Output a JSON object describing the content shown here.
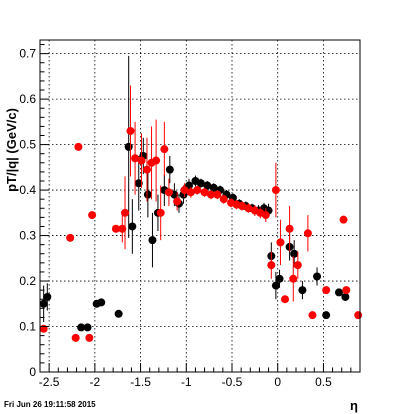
{
  "footer_text": "Fri Jun 26 19:11:58 2015",
  "chart_data": {
    "type": "scatter",
    "title": "",
    "xlabel": "η",
    "ylabel": "pT/|q| (GeV/c)",
    "xlim": [
      -2.6,
      0.9
    ],
    "ylim": [
      0,
      0.73
    ],
    "xticks": [
      -2.5,
      -2,
      -1.5,
      -1,
      -0.5,
      0,
      0.5
    ],
    "xtick_labels": [
      "-2.5",
      "-2",
      "-1.5",
      "-1",
      "-0.5",
      "0",
      "0.5"
    ],
    "yticks": [
      0,
      0.1,
      0.2,
      0.3,
      0.4,
      0.5,
      0.6,
      0.7
    ],
    "ytick_labels": [
      "0",
      "0.1",
      "0.2",
      "0.3",
      "0.4",
      "0.5",
      "0.6",
      "0.7"
    ],
    "grid": true,
    "series": [
      {
        "color": "#000000",
        "points": [
          {
            "x": -2.56,
            "y": 0.15,
            "err": 0.04
          },
          {
            "x": -2.52,
            "y": 0.165,
            "err": 0.03
          },
          {
            "x": -2.15,
            "y": 0.098,
            "err": 0.0
          },
          {
            "x": -2.08,
            "y": 0.098,
            "err": 0.0
          },
          {
            "x": -1.98,
            "y": 0.15,
            "err": 0.0
          },
          {
            "x": -1.93,
            "y": 0.153,
            "err": 0.0
          },
          {
            "x": -1.74,
            "y": 0.128,
            "err": 0.0
          },
          {
            "x": -1.63,
            "y": 0.495,
            "err": 0.2
          },
          {
            "x": -1.59,
            "y": 0.32,
            "err": 0.06
          },
          {
            "x": -1.52,
            "y": 0.415,
            "err": 0.06
          },
          {
            "x": -1.47,
            "y": 0.475,
            "err": 0.04
          },
          {
            "x": -1.42,
            "y": 0.39,
            "err": 0.05
          },
          {
            "x": -1.37,
            "y": 0.29,
            "err": 0.06
          },
          {
            "x": -1.31,
            "y": 0.35,
            "err": 0.04
          },
          {
            "x": -1.24,
            "y": 0.4,
            "err": 0.035
          },
          {
            "x": -1.18,
            "y": 0.445,
            "err": 0.03
          },
          {
            "x": -1.13,
            "y": 0.39,
            "err": 0.025
          },
          {
            "x": -1.08,
            "y": 0.37,
            "err": 0.02
          },
          {
            "x": -1.03,
            "y": 0.39,
            "err": 0.02
          },
          {
            "x": -0.97,
            "y": 0.41,
            "err": 0.015
          },
          {
            "x": -0.9,
            "y": 0.42,
            "err": 0.012
          },
          {
            "x": -0.84,
            "y": 0.415,
            "err": 0.01
          },
          {
            "x": -0.77,
            "y": 0.41,
            "err": 0.01
          },
          {
            "x": -0.7,
            "y": 0.405,
            "err": 0.01
          },
          {
            "x": -0.63,
            "y": 0.4,
            "err": 0.01
          },
          {
            "x": -0.56,
            "y": 0.39,
            "err": 0.01
          },
          {
            "x": -0.49,
            "y": 0.383,
            "err": 0.01
          },
          {
            "x": -0.42,
            "y": 0.37,
            "err": 0.01
          },
          {
            "x": -0.35,
            "y": 0.365,
            "err": 0.01
          },
          {
            "x": -0.28,
            "y": 0.36,
            "err": 0.01
          },
          {
            "x": -0.21,
            "y": 0.355,
            "err": 0.012
          },
          {
            "x": -0.15,
            "y": 0.36,
            "err": 0.012
          },
          {
            "x": -0.1,
            "y": 0.355,
            "err": 0.015
          },
          {
            "x": -0.07,
            "y": 0.255,
            "err": 0.03
          },
          {
            "x": -0.02,
            "y": 0.19,
            "err": 0.03
          },
          {
            "x": 0.02,
            "y": 0.205,
            "err": 0.02
          },
          {
            "x": 0.13,
            "y": 0.275,
            "err": 0.03
          },
          {
            "x": 0.18,
            "y": 0.26,
            "err": 0.03
          },
          {
            "x": 0.27,
            "y": 0.18,
            "err": 0.02
          },
          {
            "x": 0.43,
            "y": 0.21,
            "err": 0.02
          },
          {
            "x": 0.53,
            "y": 0.125,
            "err": 0.0
          },
          {
            "x": 0.67,
            "y": 0.175,
            "err": 0.0
          },
          {
            "x": 0.74,
            "y": 0.165,
            "err": 0.0
          }
        ]
      },
      {
        "color": "#ff0000",
        "points": [
          {
            "x": -2.56,
            "y": 0.095,
            "err": 0.0
          },
          {
            "x": -2.27,
            "y": 0.295,
            "err": 0.0
          },
          {
            "x": -2.21,
            "y": 0.075,
            "err": 0.0
          },
          {
            "x": -2.18,
            "y": 0.495,
            "err": 0.0
          },
          {
            "x": -2.06,
            "y": 0.075,
            "err": 0.0
          },
          {
            "x": -2.03,
            "y": 0.345,
            "err": 0.0
          },
          {
            "x": -1.77,
            "y": 0.315,
            "err": 0.0
          },
          {
            "x": -1.7,
            "y": 0.315,
            "err": 0.03
          },
          {
            "x": -1.67,
            "y": 0.35,
            "err": 0.08
          },
          {
            "x": -1.61,
            "y": 0.53,
            "err": 0.1
          },
          {
            "x": -1.56,
            "y": 0.47,
            "err": 0.08
          },
          {
            "x": -1.49,
            "y": 0.465,
            "err": 0.06
          },
          {
            "x": -1.43,
            "y": 0.445,
            "err": 0.07
          },
          {
            "x": -1.38,
            "y": 0.46,
            "err": 0.08
          },
          {
            "x": -1.33,
            "y": 0.465,
            "err": 0.09
          },
          {
            "x": -1.28,
            "y": 0.35,
            "err": 0.06
          },
          {
            "x": -1.24,
            "y": 0.49,
            "err": 0.06
          },
          {
            "x": -1.19,
            "y": 0.395,
            "err": 0.03
          },
          {
            "x": -1.1,
            "y": 0.375,
            "err": 0.02
          },
          {
            "x": -1.02,
            "y": 0.4,
            "err": 0.015
          },
          {
            "x": -0.95,
            "y": 0.395,
            "err": 0.012
          },
          {
            "x": -0.88,
            "y": 0.4,
            "err": 0.01
          },
          {
            "x": -0.8,
            "y": 0.395,
            "err": 0.01
          },
          {
            "x": -0.73,
            "y": 0.39,
            "err": 0.01
          },
          {
            "x": -0.66,
            "y": 0.39,
            "err": 0.01
          },
          {
            "x": -0.59,
            "y": 0.38,
            "err": 0.01
          },
          {
            "x": -0.51,
            "y": 0.372,
            "err": 0.01
          },
          {
            "x": -0.45,
            "y": 0.368,
            "err": 0.01
          },
          {
            "x": -0.39,
            "y": 0.365,
            "err": 0.01
          },
          {
            "x": -0.32,
            "y": 0.36,
            "err": 0.01
          },
          {
            "x": -0.25,
            "y": 0.355,
            "err": 0.012
          },
          {
            "x": -0.19,
            "y": 0.35,
            "err": 0.012
          },
          {
            "x": -0.13,
            "y": 0.345,
            "err": 0.015
          },
          {
            "x": -0.07,
            "y": 0.235,
            "err": 0.03
          },
          {
            "x": -0.02,
            "y": 0.4,
            "err": 0.06
          },
          {
            "x": 0.03,
            "y": 0.285,
            "err": 0.05
          },
          {
            "x": 0.08,
            "y": 0.16,
            "err": 0.0
          },
          {
            "x": 0.13,
            "y": 0.315,
            "err": 0.05
          },
          {
            "x": 0.17,
            "y": 0.205,
            "err": 0.05
          },
          {
            "x": 0.22,
            "y": 0.235,
            "err": 0.03
          },
          {
            "x": 0.33,
            "y": 0.305,
            "err": 0.04
          },
          {
            "x": 0.38,
            "y": 0.125,
            "err": 0.0
          },
          {
            "x": 0.53,
            "y": 0.18,
            "err": 0.0
          },
          {
            "x": 0.72,
            "y": 0.335,
            "err": 0.0
          },
          {
            "x": 0.75,
            "y": 0.18,
            "err": 0.0
          },
          {
            "x": 0.88,
            "y": 0.125,
            "err": 0.0
          }
        ]
      }
    ]
  }
}
